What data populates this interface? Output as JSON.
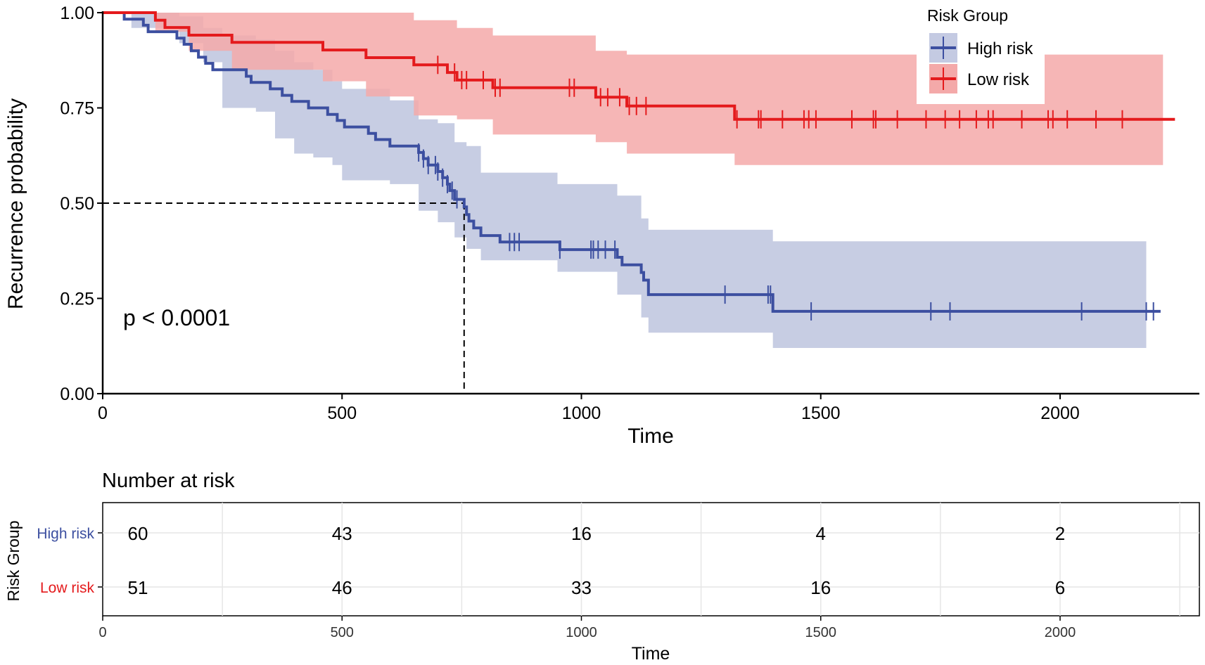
{
  "chart_data": {
    "type": "kaplan-meier",
    "xlabel": "Time",
    "ylabel": "Recurrence probability",
    "xlim": [
      0,
      2300
    ],
    "ylim": [
      0,
      1
    ],
    "x_ticks": [
      0,
      500,
      1000,
      1500,
      2000
    ],
    "x_tick_labels": [
      "0",
      "500",
      "1000",
      "1500",
      "2000"
    ],
    "y_ticks": [
      0,
      0.25,
      0.5,
      0.75,
      1.0
    ],
    "y_tick_labels": [
      "0.00",
      "0.25",
      "0.50",
      "0.75",
      "1.00"
    ],
    "pvalue_label": "p < 0.0001",
    "median_survival": {
      "x": 755,
      "y": 0.5
    },
    "legend": {
      "title": "Risk Group",
      "position": "top-right",
      "entries": [
        "High risk",
        "Low risk"
      ]
    },
    "series": [
      {
        "name": "High risk",
        "color": "#3C4FA0",
        "band_color": "#C4CAE2",
        "step": [
          [
            0,
            1.0
          ],
          [
            45,
            0.983
          ],
          [
            85,
            0.967
          ],
          [
            95,
            0.95
          ],
          [
            155,
            0.933
          ],
          [
            170,
            0.917
          ],
          [
            185,
            0.9
          ],
          [
            200,
            0.883
          ],
          [
            215,
            0.867
          ],
          [
            230,
            0.85
          ],
          [
            300,
            0.833
          ],
          [
            310,
            0.817
          ],
          [
            350,
            0.8
          ],
          [
            375,
            0.783
          ],
          [
            395,
            0.767
          ],
          [
            430,
            0.75
          ],
          [
            470,
            0.733
          ],
          [
            490,
            0.717
          ],
          [
            505,
            0.7
          ],
          [
            555,
            0.683
          ],
          [
            570,
            0.667
          ],
          [
            600,
            0.65
          ],
          [
            660,
            0.633
          ],
          [
            670,
            0.617
          ],
          [
            680,
            0.6
          ],
          [
            700,
            0.583
          ],
          [
            710,
            0.567
          ],
          [
            720,
            0.55
          ],
          [
            725,
            0.533
          ],
          [
            735,
            0.51
          ],
          [
            755,
            0.49
          ],
          [
            760,
            0.47
          ],
          [
            765,
            0.453
          ],
          [
            775,
            0.435
          ],
          [
            790,
            0.415
          ],
          [
            830,
            0.398
          ],
          [
            955,
            0.378
          ],
          [
            1075,
            0.358
          ],
          [
            1085,
            0.338
          ],
          [
            1125,
            0.318
          ],
          [
            1130,
            0.298
          ],
          [
            1140,
            0.26
          ],
          [
            1400,
            0.216
          ],
          [
            2210,
            0.216
          ]
        ],
        "upper": [
          [
            0,
            1.0
          ],
          [
            60,
            1.0
          ],
          [
            160,
            0.99
          ],
          [
            210,
            0.96
          ],
          [
            250,
            0.94
          ],
          [
            320,
            0.93
          ],
          [
            360,
            0.9
          ],
          [
            400,
            0.87
          ],
          [
            440,
            0.85
          ],
          [
            480,
            0.82
          ],
          [
            500,
            0.8
          ],
          [
            600,
            0.77
          ],
          [
            660,
            0.72
          ],
          [
            700,
            0.71
          ],
          [
            735,
            0.66
          ],
          [
            760,
            0.65
          ],
          [
            790,
            0.58
          ],
          [
            950,
            0.55
          ],
          [
            1075,
            0.52
          ],
          [
            1125,
            0.46
          ],
          [
            1140,
            0.43
          ],
          [
            1400,
            0.4
          ],
          [
            2180,
            0.4
          ]
        ],
        "lower": [
          [
            0,
            1.0
          ],
          [
            60,
            0.96
          ],
          [
            160,
            0.92
          ],
          [
            210,
            0.87
          ],
          [
            250,
            0.75
          ],
          [
            320,
            0.74
          ],
          [
            360,
            0.67
          ],
          [
            400,
            0.63
          ],
          [
            440,
            0.62
          ],
          [
            480,
            0.6
          ],
          [
            500,
            0.56
          ],
          [
            600,
            0.55
          ],
          [
            660,
            0.48
          ],
          [
            700,
            0.45
          ],
          [
            735,
            0.41
          ],
          [
            760,
            0.38
          ],
          [
            790,
            0.35
          ],
          [
            950,
            0.32
          ],
          [
            1075,
            0.26
          ],
          [
            1125,
            0.2
          ],
          [
            1140,
            0.16
          ],
          [
            1400,
            0.12
          ],
          [
            2180,
            0.12
          ]
        ],
        "censor_times": [
          660,
          670,
          680,
          695,
          700,
          710,
          720,
          730,
          740,
          850,
          860,
          870,
          955,
          1020,
          1025,
          1035,
          1050,
          1070,
          1300,
          1390,
          1395,
          1480,
          1730,
          1770,
          2045,
          2180,
          2195
        ]
      },
      {
        "name": "Low risk",
        "color": "#E41A1C",
        "band_color": "#F4A9A9",
        "step": [
          [
            0,
            1.0
          ],
          [
            110,
            0.98
          ],
          [
            130,
            0.961
          ],
          [
            180,
            0.941
          ],
          [
            270,
            0.922
          ],
          [
            460,
            0.902
          ],
          [
            550,
            0.882
          ],
          [
            650,
            0.863
          ],
          [
            720,
            0.843
          ],
          [
            740,
            0.823
          ],
          [
            815,
            0.803
          ],
          [
            1030,
            0.778
          ],
          [
            1095,
            0.755
          ],
          [
            1320,
            0.72
          ],
          [
            2240,
            0.72
          ]
        ],
        "upper": [
          [
            0,
            1.0
          ],
          [
            550,
            1.0
          ],
          [
            650,
            0.98
          ],
          [
            740,
            0.96
          ],
          [
            815,
            0.94
          ],
          [
            1030,
            0.9
          ],
          [
            1095,
            0.89
          ],
          [
            1320,
            0.89
          ],
          [
            1320,
            0.89
          ],
          [
            2215,
            0.86
          ]
        ],
        "lower": [
          [
            0,
            1.0
          ],
          [
            110,
            0.95
          ],
          [
            180,
            0.9
          ],
          [
            270,
            0.85
          ],
          [
            460,
            0.82
          ],
          [
            550,
            0.78
          ],
          [
            650,
            0.73
          ],
          [
            740,
            0.72
          ],
          [
            815,
            0.68
          ],
          [
            1030,
            0.66
          ],
          [
            1095,
            0.63
          ],
          [
            1320,
            0.6
          ],
          [
            2215,
            0.6
          ]
        ],
        "censor_times": [
          700,
          735,
          750,
          760,
          795,
          820,
          830,
          975,
          985,
          1040,
          1055,
          1080,
          1100,
          1115,
          1135,
          1325,
          1370,
          1375,
          1420,
          1465,
          1475,
          1490,
          1565,
          1610,
          1615,
          1660,
          1720,
          1760,
          1790,
          1825,
          1850,
          1860,
          1920,
          1975,
          1985,
          2015,
          2075,
          2130
        ]
      }
    ],
    "risk_table": {
      "title": "Number at risk",
      "ylabel": "Risk Group",
      "xlabel": "Time",
      "times": [
        0,
        500,
        1000,
        1500,
        2000
      ],
      "time_labels": [
        "0",
        "500",
        "1000",
        "1500",
        "2000"
      ],
      "rows": [
        {
          "name": "High risk",
          "color": "#3C4FA0",
          "counts": [
            "60",
            "43",
            "16",
            "4",
            "2"
          ]
        },
        {
          "name": "Low risk",
          "color": "#E41A1C",
          "counts": [
            "51",
            "46",
            "33",
            "16",
            "6"
          ]
        }
      ]
    }
  }
}
